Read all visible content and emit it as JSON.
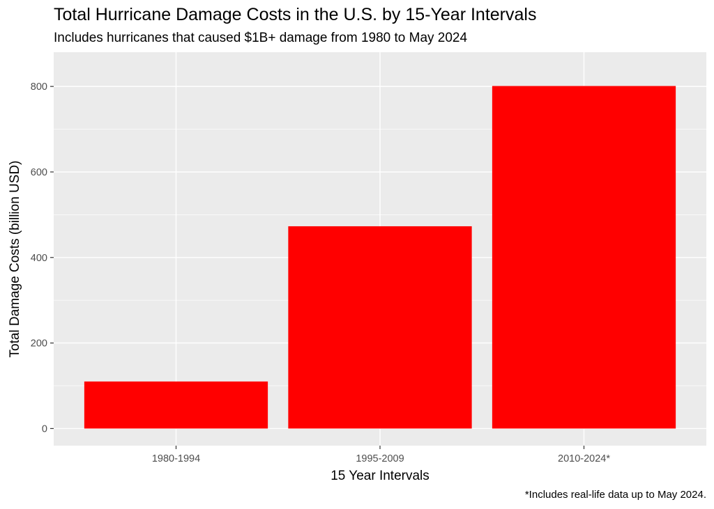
{
  "title": "Total Hurricane Damage Costs in the U.S. by 15-Year Intervals",
  "subtitle": "Includes hurricanes that caused $1B+ damage from 1980 to May 2024",
  "caption": "*Includes real-life data up to May 2024.",
  "colors": {
    "bar": "#ff0000",
    "panel": "#ebebeb",
    "grid": "#ffffff"
  },
  "chart_data": {
    "type": "bar",
    "categories": [
      "1980-1994",
      "1995-2009",
      "2010-2024*"
    ],
    "values": [
      110,
      473,
      801
    ],
    "xlabel": "15 Year Intervals",
    "ylabel": "Total Damage Costs (billion USD)",
    "ylim": [
      -40,
      880
    ],
    "yticks": [
      0,
      200,
      400,
      600,
      800
    ],
    "grid": true,
    "legend": "none"
  }
}
